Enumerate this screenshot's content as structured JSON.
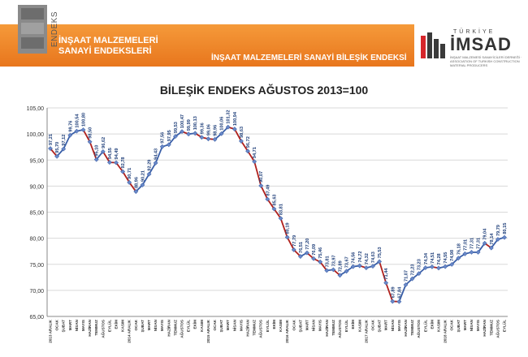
{
  "header": {
    "logo_label": "ENDEKS",
    "left_title_line1": "İNŞAAT MALZEMELERİ",
    "left_title_line2": "SANAYİ ENDEKSLERİ",
    "right_title": "İNŞAAT MALZEMELERİ SANAYİ BİLEŞİK ENDEKSİ",
    "brand_country": "TÜRKİYE",
    "brand_name": "İMSAD",
    "brand_subtitle": "İNŞAAT MALZEMESİ SANAYİCİLERİ DERNEĞİ · ASSOCIATION OF TURKISH CONSTRUCTION MATERIAL PRODUCERS"
  },
  "colors": {
    "header_orange": "#ee8a2a",
    "line_blue": "#3a5fa8",
    "line_red": "#b0201c",
    "grid": "#d9d9d9"
  },
  "chart_data": {
    "type": "line",
    "title": "BİLEŞİK ENDEKS AĞUSTOS 2013=100",
    "ylim": [
      65,
      105
    ],
    "yticks": [
      "65,00",
      "70,00",
      "75,00",
      "80,00",
      "85,00",
      "90,00",
      "95,00",
      "100,00",
      "105,00"
    ],
    "grid": true,
    "categories": [
      "2013 ARALIK",
      "OCAK",
      "ŞUBAT",
      "MART",
      "NİSAN",
      "MAYIS",
      "HAZİRAN",
      "TEMMUZ",
      "AĞUSTOS",
      "EYLÜL",
      "EKİM",
      "KASIM",
      "2014 ARALIK",
      "OCAK",
      "ŞUBAT",
      "MART",
      "NİSAN",
      "MAYIS",
      "HAZİRAN",
      "TEMMUZ",
      "AĞUSTOS",
      "EYLÜL",
      "EKİM",
      "KASIM",
      "2015 ARALIK",
      "OCAK",
      "ŞUBAT",
      "MART",
      "NİSAN",
      "MAYIS",
      "HAZİRAN",
      "TEMMUZ",
      "AĞUSTOS",
      "EYLÜL",
      "EKİM",
      "KASIM",
      "2016 ARALIK",
      "OCAK",
      "ŞUBAT",
      "MART",
      "NİSAN",
      "MAYIS",
      "HAZİRAN",
      "TEMMUZ",
      "AĞUSTOS",
      "EYLÜL",
      "EKİM",
      "KASIM",
      "2017 ARALIK",
      "OCAK",
      "ŞUBAT",
      "MART",
      "NİSAN",
      "MAYIS",
      "HAZİRAN",
      "TEMMUZ",
      "AĞUSTOS",
      "EYLÜL",
      "EKİM",
      "KASIM",
      "2018 ARALIK",
      "OCAK",
      "ŞUBAT",
      "MART",
      "NİSAN",
      "MAYIS",
      "HAZİRAN",
      "TEMMUZ",
      "AĞUSTOS",
      "EYLÜL"
    ],
    "series": [
      {
        "values": [
          97.21,
          95.7,
          97.12,
          99.76,
          100.54,
          100.8,
          98.5,
          95.1,
          96.62,
          94.55,
          94.49,
          92.78,
          90.71,
          88.96,
          90.21,
          92.29,
          94.43,
          97.56,
          97.95,
          99.53,
          100.47,
          99.99,
          100.13,
          99.36,
          99.06,
          98.96,
          100.06,
          101.32,
          100.94,
          98.63,
          96.72,
          94.71,
          90.07,
          87.49,
          85.63,
          83.81,
          80.19,
          77.79,
          76.51,
          77.2,
          76.09,
          75.46,
          73.81,
          73.97,
          72.89,
          73.67,
          74.56,
          74.72,
          74.32,
          74.63,
          75.53,
          71.44,
          67.89,
          67.84,
          71.07,
          72.23,
          73.23,
          74.34,
          74.51,
          74.28,
          74.55,
          74.98,
          76.18,
          77.01,
          77.31,
          77.31,
          79.04,
          78.14,
          79.79,
          80.15
        ],
        "value_labels": [
          "97,21",
          "95,70",
          "97,12",
          "99,76",
          "100,54",
          "100,80",
          "98,50",
          "95,10",
          "96,62",
          "94,55",
          "94,49",
          "92,78",
          "90,71",
          "88,96",
          "90,21",
          "92,29",
          "94,43",
          "97,56",
          "97,95",
          "99,53",
          "100,47",
          "99,99",
          "100,13",
          "99,36",
          "99,06",
          "98,96",
          "100,06",
          "101,32",
          "100,94",
          "98,63",
          "96,72",
          "94,71",
          "90,07",
          "87,49",
          "85,63",
          "83,81",
          "80,19",
          "77,79",
          "76,51",
          "77,20",
          "76,09",
          "75,46",
          "73,81",
          "73,97",
          "72,89",
          "73,67",
          "74,56",
          "74,72",
          "74,32",
          "74,63",
          "75,53",
          "71,44",
          "67,89",
          "67,84",
          "71,07",
          "72,23",
          "73,23",
          "74,34",
          "74,51",
          "74,28",
          "74,55",
          "74,98",
          "76,18",
          "77,01",
          "77,31",
          "77,31",
          "79,04",
          "78,14",
          "79,79",
          "80,15"
        ]
      }
    ]
  }
}
